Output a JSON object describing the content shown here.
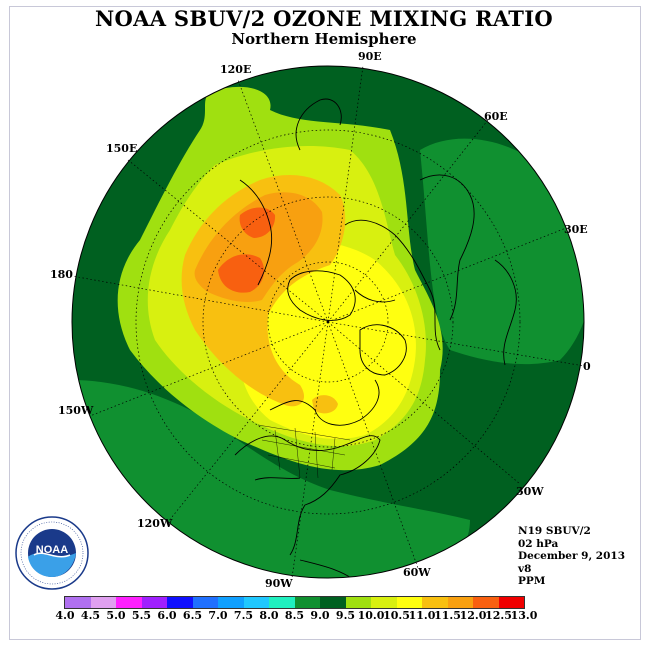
{
  "header": {
    "title": "NOAA SBUV/2 OZONE MIXING RATIO",
    "subtitle": "Northern Hemisphere"
  },
  "longitude_labels": {
    "l90e": "90E",
    "l120e": "120E",
    "l60e": "60E",
    "l150e": "150E",
    "l30e": "30E",
    "l180": "180",
    "l0": "0",
    "l150w": "150W",
    "l30w": "30W",
    "l120w": "120W",
    "l60w": "60W",
    "l90w": "90W"
  },
  "info": {
    "satellite": "N19 SBUV/2",
    "pressure": "02 hPa",
    "date": "December 9, 2013",
    "version": "v8",
    "units": "PPM"
  },
  "colorbar": {
    "labels": [
      "4.0",
      "4.5",
      "5.0",
      "5.5",
      "6.0",
      "6.5",
      "7.0",
      "7.5",
      "8.0",
      "8.5",
      "9.0",
      "9.5",
      "10.0",
      "10.5",
      "11.0",
      "11.5",
      "12.0",
      "12.5",
      "13.0"
    ],
    "colors": [
      "#b070f0",
      "#e0a0f0",
      "#ff20ff",
      "#a020ff",
      "#1010ff",
      "#2070ff",
      "#10a0ff",
      "#20c8ff",
      "#20f0c0",
      "#109030",
      "#006020",
      "#a0e010",
      "#d8f010",
      "#ffff10",
      "#f8c010",
      "#f8a010",
      "#f86010",
      "#f00000",
      "#8b5a3c"
    ]
  },
  "map_colors": {
    "dark_green": "#006020",
    "green": "#109030",
    "lime": "#a0e010",
    "yellow_green": "#d8f010",
    "yellow": "#ffff10",
    "orange_yellow": "#f8c010",
    "orange": "#f8a010",
    "red_orange": "#f86010"
  },
  "logo": {
    "text": "NOAA",
    "ring_text": "NATIONAL OCEANIC AND ATMOSPHERIC ADMINISTRATION · U.S. DEPARTMENT OF COMMERCE"
  }
}
